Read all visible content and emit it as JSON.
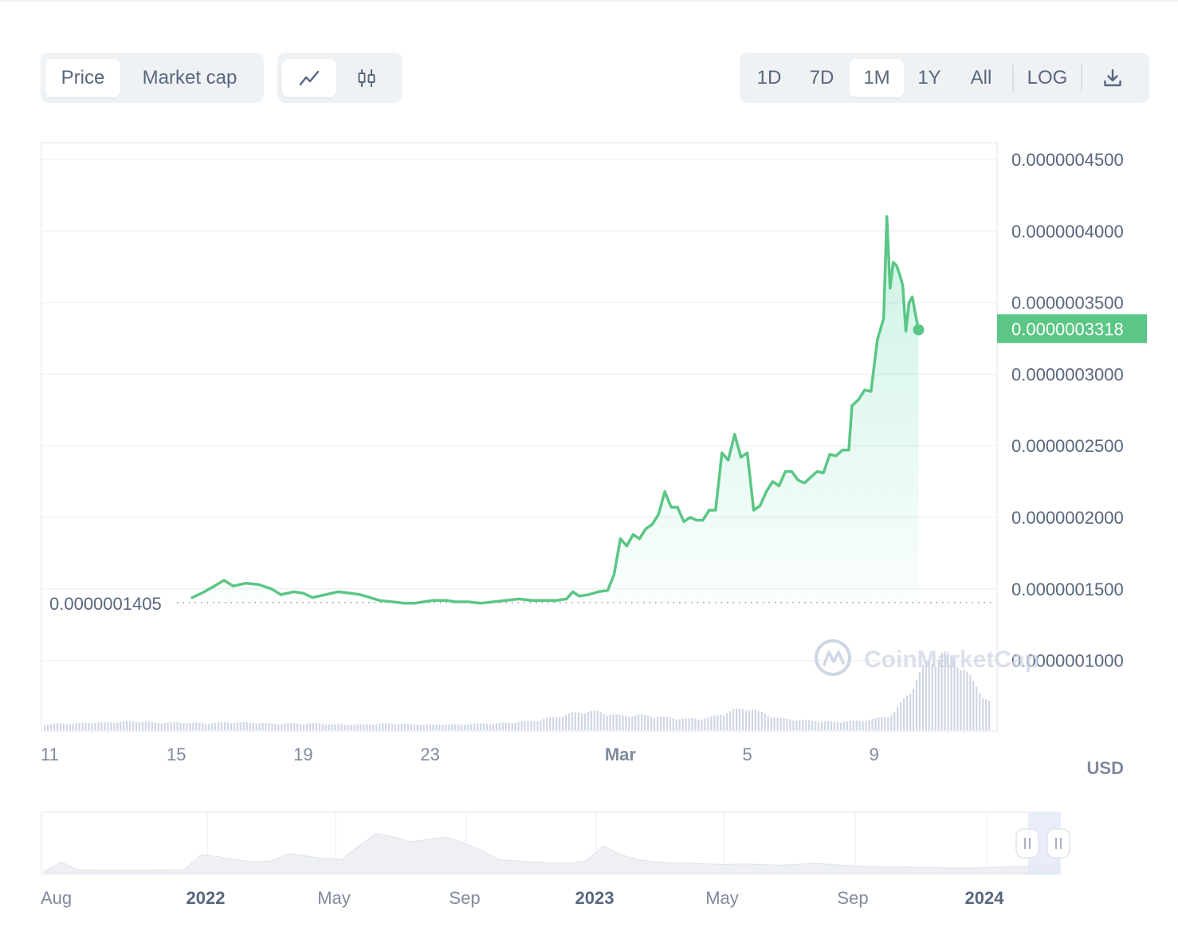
{
  "controls": {
    "type_tabs": [
      {
        "label": "Price",
        "active": true
      },
      {
        "label": "Market cap",
        "active": false
      }
    ],
    "style_tabs": [
      {
        "icon": "line-chart-icon",
        "active": true
      },
      {
        "icon": "candlestick-icon",
        "active": false
      }
    ],
    "range_tabs": [
      {
        "label": "1D",
        "active": false
      },
      {
        "label": "7D",
        "active": false
      },
      {
        "label": "1M",
        "active": true
      },
      {
        "label": "1Y",
        "active": false
      },
      {
        "label": "All",
        "active": false
      }
    ],
    "log_label": "LOG",
    "download_icon": "download-icon"
  },
  "chart_data": {
    "type": "area",
    "title": "",
    "xlabel": "",
    "ylabel": "",
    "currency_label": "USD",
    "watermark": "CoinMarketCap",
    "ylim": [
      6e-08,
      4.6e-07
    ],
    "y_ticks": [
      {
        "value": 4.5e-07,
        "label": "0.0000004500"
      },
      {
        "value": 4e-07,
        "label": "0.0000004000"
      },
      {
        "value": 3.5e-07,
        "label": "0.0000003500"
      },
      {
        "value": 3e-07,
        "label": "0.0000003000"
      },
      {
        "value": 2.5e-07,
        "label": "0.0000002500"
      },
      {
        "value": 2e-07,
        "label": "0.0000002000"
      },
      {
        "value": 1.5e-07,
        "label": "0.0000001500"
      },
      {
        "value": 1e-07,
        "label": "0.0000001000"
      }
    ],
    "x_ticks": [
      {
        "day": 11,
        "label": "11",
        "bold": false
      },
      {
        "day": 15,
        "label": "15",
        "bold": false
      },
      {
        "day": 19,
        "label": "19",
        "bold": false
      },
      {
        "day": 23,
        "label": "23",
        "bold": false
      },
      {
        "day": 29,
        "label": "Mar",
        "bold": true
      },
      {
        "day": 33,
        "label": "5",
        "bold": false
      },
      {
        "day": 37,
        "label": "9",
        "bold": false
      }
    ],
    "start_price": {
      "value": 1.405e-07,
      "label": "0.0000001405"
    },
    "current_price": {
      "value": 3.318e-07,
      "label": "0.0000003318"
    },
    "series": [
      {
        "points": [
          [
            15.5,
            1.44e-07
          ],
          [
            15.8,
            1.47e-07
          ],
          [
            16.2,
            1.52e-07
          ],
          [
            16.5,
            1.56e-07
          ],
          [
            16.8,
            1.52e-07
          ],
          [
            17.2,
            1.54e-07
          ],
          [
            17.6,
            1.53e-07
          ],
          [
            18.0,
            1.5e-07
          ],
          [
            18.3,
            1.46e-07
          ],
          [
            18.7,
            1.48e-07
          ],
          [
            19.0,
            1.47e-07
          ],
          [
            19.3,
            1.44e-07
          ],
          [
            19.7,
            1.46e-07
          ],
          [
            20.1,
            1.48e-07
          ],
          [
            20.5,
            1.47e-07
          ],
          [
            20.8,
            1.46e-07
          ],
          [
            21.1,
            1.44e-07
          ],
          [
            21.4,
            1.42e-07
          ],
          [
            21.8,
            1.41e-07
          ],
          [
            22.2,
            1.4e-07
          ],
          [
            22.5,
            1.4e-07
          ],
          [
            22.8,
            1.41e-07
          ],
          [
            23.1,
            1.42e-07
          ],
          [
            23.5,
            1.42e-07
          ],
          [
            23.8,
            1.41e-07
          ],
          [
            24.2,
            1.41e-07
          ],
          [
            24.6,
            1.4e-07
          ],
          [
            25.0,
            1.41e-07
          ],
          [
            25.4,
            1.42e-07
          ],
          [
            25.8,
            1.43e-07
          ],
          [
            26.2,
            1.42e-07
          ],
          [
            26.6,
            1.42e-07
          ],
          [
            27.0,
            1.42e-07
          ],
          [
            27.3,
            1.43e-07
          ],
          [
            27.5,
            1.48e-07
          ],
          [
            27.7,
            1.45e-07
          ],
          [
            28.0,
            1.46e-07
          ],
          [
            28.3,
            1.48e-07
          ],
          [
            28.6,
            1.49e-07
          ],
          [
            28.8,
            1.6e-07
          ],
          [
            29.0,
            1.85e-07
          ],
          [
            29.2,
            1.8e-07
          ],
          [
            29.4,
            1.88e-07
          ],
          [
            29.6,
            1.85e-07
          ],
          [
            29.8,
            1.92e-07
          ],
          [
            30.0,
            1.95e-07
          ],
          [
            30.2,
            2.02e-07
          ],
          [
            30.4,
            2.18e-07
          ],
          [
            30.6,
            2.07e-07
          ],
          [
            30.8,
            2.07e-07
          ],
          [
            31.0,
            1.97e-07
          ],
          [
            31.2,
            2e-07
          ],
          [
            31.4,
            1.98e-07
          ],
          [
            31.6,
            1.98e-07
          ],
          [
            31.8,
            2.05e-07
          ],
          [
            32.0,
            2.05e-07
          ],
          [
            32.2,
            2.45e-07
          ],
          [
            32.4,
            2.4e-07
          ],
          [
            32.6,
            2.58e-07
          ],
          [
            32.8,
            2.42e-07
          ],
          [
            33.0,
            2.45e-07
          ],
          [
            33.2,
            2.05e-07
          ],
          [
            33.4,
            2.08e-07
          ],
          [
            33.6,
            2.18e-07
          ],
          [
            33.8,
            2.25e-07
          ],
          [
            34.0,
            2.22e-07
          ],
          [
            34.2,
            2.32e-07
          ],
          [
            34.4,
            2.32e-07
          ],
          [
            34.6,
            2.26e-07
          ],
          [
            34.8,
            2.24e-07
          ],
          [
            35.0,
            2.28e-07
          ],
          [
            35.2,
            2.32e-07
          ],
          [
            35.4,
            2.31e-07
          ],
          [
            35.6,
            2.44e-07
          ],
          [
            35.8,
            2.43e-07
          ],
          [
            36.0,
            2.47e-07
          ],
          [
            36.2,
            2.47e-07
          ],
          [
            36.3,
            2.78e-07
          ],
          [
            36.5,
            2.82e-07
          ],
          [
            36.7,
            2.89e-07
          ],
          [
            36.9,
            2.88e-07
          ],
          [
            37.1,
            3.24e-07
          ],
          [
            37.3,
            3.39e-07
          ],
          [
            37.4,
            4.1e-07
          ],
          [
            37.5,
            3.6e-07
          ],
          [
            37.6,
            3.78e-07
          ],
          [
            37.7,
            3.76e-07
          ],
          [
            37.8,
            3.7e-07
          ],
          [
            37.9,
            3.62e-07
          ],
          [
            38.0,
            3.3e-07
          ],
          [
            38.1,
            3.5e-07
          ],
          [
            38.2,
            3.54e-07
          ],
          [
            38.3,
            3.42e-07
          ],
          [
            38.4,
            3.31e-07
          ]
        ]
      }
    ],
    "volume": {
      "label": "",
      "relative_values": [
        0.06,
        0.07,
        0.07,
        0.08,
        0.08,
        0.09,
        0.09,
        0.08,
        0.08,
        0.08,
        0.07,
        0.08,
        0.08,
        0.08,
        0.07,
        0.07,
        0.07,
        0.07,
        0.06,
        0.06,
        0.06,
        0.07,
        0.07,
        0.06,
        0.06,
        0.06,
        0.06,
        0.07,
        0.07,
        0.08,
        0.09,
        0.11,
        0.14,
        0.18,
        0.2,
        0.18,
        0.15,
        0.16,
        0.15,
        0.13,
        0.12,
        0.12,
        0.15,
        0.21,
        0.23,
        0.17,
        0.12,
        0.11,
        0.1,
        0.09,
        0.09,
        0.1,
        0.12,
        0.17,
        0.4,
        0.69,
        0.8,
        0.74,
        0.5,
        0.3
      ]
    }
  },
  "navigator": {
    "labels": [
      {
        "label": "Aug",
        "bold": false
      },
      {
        "label": "2022",
        "bold": true
      },
      {
        "label": "May",
        "bold": false
      },
      {
        "label": "Sep",
        "bold": false
      },
      {
        "label": "2023",
        "bold": true
      },
      {
        "label": "May",
        "bold": false
      },
      {
        "label": "Sep",
        "bold": false
      },
      {
        "label": "2024",
        "bold": true
      }
    ],
    "history_relative": [
      0.02,
      0.18,
      0.05,
      0.04,
      0.04,
      0.04,
      0.04,
      0.05,
      0.05,
      0.3,
      0.27,
      0.22,
      0.18,
      0.2,
      0.32,
      0.28,
      0.24,
      0.22,
      0.45,
      0.66,
      0.6,
      0.52,
      0.56,
      0.6,
      0.5,
      0.38,
      0.22,
      0.2,
      0.18,
      0.17,
      0.16,
      0.2,
      0.45,
      0.3,
      0.22,
      0.18,
      0.17,
      0.16,
      0.15,
      0.14,
      0.15,
      0.14,
      0.13,
      0.14,
      0.16,
      0.14,
      0.12,
      0.11,
      0.1,
      0.1,
      0.09,
      0.09,
      0.08,
      0.08,
      0.09,
      0.1,
      0.11,
      0.12,
      0.13
    ]
  }
}
